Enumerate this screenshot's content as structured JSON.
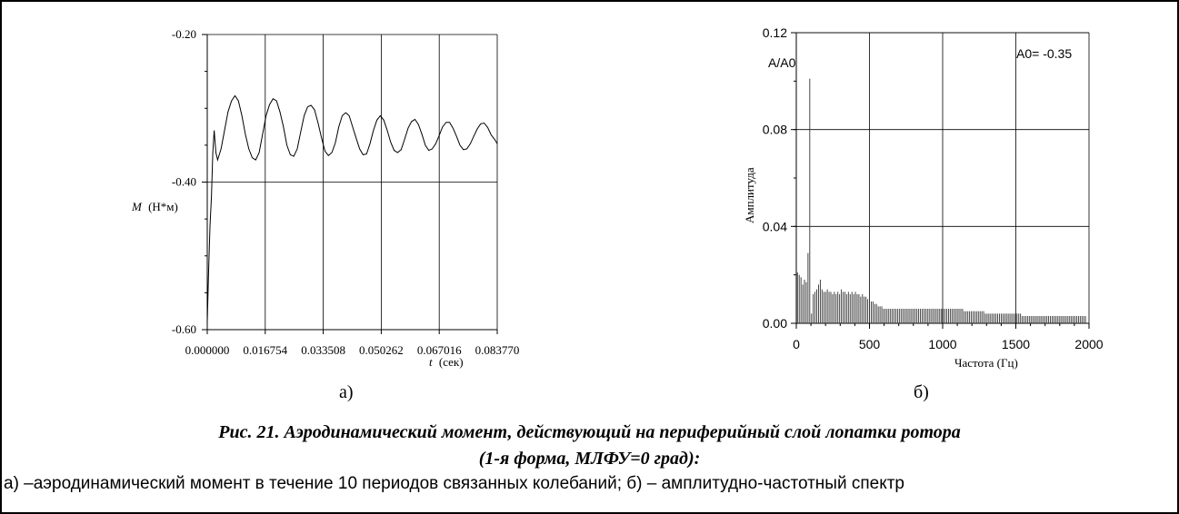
{
  "chart_data": [
    {
      "type": "line",
      "panel_label": "а)",
      "y_label_symbol": "M",
      "y_label_unit": "(Н*м)",
      "x_label_symbol": "t",
      "x_label_unit": "(сек)",
      "xlim": [
        0.0,
        0.08377
      ],
      "ylim": [
        -0.6,
        -0.2
      ],
      "x_ticks": [
        "0.000000",
        "0.016754",
        "0.033508",
        "0.050262",
        "0.067016",
        "0.083770"
      ],
      "y_ticks": [
        "-0.20",
        "-0.40",
        "-0.60"
      ],
      "y_tick_values": [
        -0.2,
        -0.4,
        -0.6
      ],
      "grid": true,
      "series": [
        {
          "x": [
            0.0,
            0.0004,
            0.0008,
            0.0012,
            0.0016,
            0.002,
            0.0025,
            0.003,
            0.004,
            0.005,
            0.006,
            0.007,
            0.008,
            0.009,
            0.01,
            0.011,
            0.012,
            0.013,
            0.014,
            0.015,
            0.016,
            0.017,
            0.018,
            0.019,
            0.02,
            0.021,
            0.022,
            0.023,
            0.024,
            0.025,
            0.026,
            0.027,
            0.028,
            0.029,
            0.03,
            0.031,
            0.032,
            0.033,
            0.034,
            0.035,
            0.036,
            0.037,
            0.038,
            0.039,
            0.04,
            0.041,
            0.042,
            0.043,
            0.044,
            0.045,
            0.046,
            0.047,
            0.048,
            0.049,
            0.05,
            0.051,
            0.052,
            0.053,
            0.054,
            0.055,
            0.056,
            0.057,
            0.058,
            0.059,
            0.06,
            0.061,
            0.062,
            0.063,
            0.064,
            0.065,
            0.066,
            0.067,
            0.068,
            0.069,
            0.07,
            0.071,
            0.072,
            0.073,
            0.074,
            0.075,
            0.076,
            0.077,
            0.078,
            0.079,
            0.08,
            0.081,
            0.082,
            0.083,
            0.08377
          ],
          "y": [
            -0.59,
            -0.52,
            -0.46,
            -0.42,
            -0.36,
            -0.33,
            -0.36,
            -0.37,
            -0.355,
            -0.33,
            -0.305,
            -0.29,
            -0.283,
            -0.29,
            -0.31,
            -0.335,
            -0.355,
            -0.367,
            -0.37,
            -0.36,
            -0.335,
            -0.31,
            -0.295,
            -0.287,
            -0.29,
            -0.305,
            -0.325,
            -0.35,
            -0.363,
            -0.365,
            -0.355,
            -0.332,
            -0.31,
            -0.298,
            -0.296,
            -0.302,
            -0.32,
            -0.34,
            -0.358,
            -0.364,
            -0.36,
            -0.347,
            -0.325,
            -0.31,
            -0.306,
            -0.31,
            -0.325,
            -0.34,
            -0.355,
            -0.363,
            -0.362,
            -0.348,
            -0.33,
            -0.316,
            -0.31,
            -0.316,
            -0.33,
            -0.346,
            -0.357,
            -0.36,
            -0.356,
            -0.342,
            -0.327,
            -0.318,
            -0.315,
            -0.322,
            -0.335,
            -0.35,
            -0.357,
            -0.355,
            -0.348,
            -0.337,
            -0.325,
            -0.319,
            -0.319,
            -0.327,
            -0.338,
            -0.35,
            -0.356,
            -0.355,
            -0.348,
            -0.338,
            -0.328,
            -0.321,
            -0.32,
            -0.326,
            -0.336,
            -0.342,
            -0.348
          ]
        }
      ]
    },
    {
      "type": "bar",
      "panel_label": "б)",
      "ylabel": "Амплитуда",
      "y_annotation": "A/A0",
      "annotation": "A0= -0.35",
      "xlabel": "Частота (Гц)",
      "xlim": [
        0,
        2000
      ],
      "ylim": [
        0,
        0.12
      ],
      "x_ticks": [
        "0",
        "500",
        "1000",
        "1500",
        "2000"
      ],
      "x_tick_values": [
        0,
        500,
        1000,
        1500,
        2000
      ],
      "y_ticks": [
        "0.00",
        "0.04",
        "0.08",
        "0.12"
      ],
      "y_tick_values": [
        0.0,
        0.04,
        0.08,
        0.12
      ],
      "grid": true,
      "bar_spacing_hz": 12,
      "values": [
        0.021,
        0.02,
        0.019,
        0.016,
        0.018,
        0.017,
        0.029,
        0.101,
        0.004,
        0.012,
        0.013,
        0.014,
        0.016,
        0.018,
        0.014,
        0.013,
        0.013,
        0.014,
        0.013,
        0.013,
        0.012,
        0.013,
        0.012,
        0.013,
        0.012,
        0.014,
        0.013,
        0.013,
        0.012,
        0.013,
        0.012,
        0.013,
        0.012,
        0.013,
        0.012,
        0.012,
        0.011,
        0.012,
        0.011,
        0.011,
        0.01,
        0.01,
        0.009,
        0.009,
        0.008,
        0.008,
        0.007,
        0.007,
        0.007,
        0.006,
        0.006,
        0.006,
        0.006,
        0.006,
        0.006,
        0.006,
        0.006,
        0.006,
        0.006,
        0.006,
        0.006,
        0.006,
        0.006,
        0.006,
        0.006,
        0.006,
        0.006,
        0.006,
        0.006,
        0.006,
        0.006,
        0.006,
        0.006,
        0.006,
        0.006,
        0.006,
        0.006,
        0.006,
        0.006,
        0.006,
        0.006,
        0.006,
        0.006,
        0.006,
        0.006,
        0.006,
        0.006,
        0.006,
        0.006,
        0.006,
        0.006,
        0.006,
        0.006,
        0.006,
        0.006,
        0.005,
        0.005,
        0.005,
        0.005,
        0.005,
        0.005,
        0.005,
        0.005,
        0.005,
        0.005,
        0.005,
        0.005,
        0.004,
        0.004,
        0.004,
        0.004,
        0.004,
        0.004,
        0.004,
        0.004,
        0.004,
        0.004,
        0.004,
        0.004,
        0.004,
        0.004,
        0.004,
        0.004,
        0.004,
        0.004,
        0.004,
        0.004,
        0.004,
        0.003,
        0.003,
        0.003,
        0.003,
        0.003,
        0.003,
        0.003,
        0.003,
        0.003,
        0.003,
        0.003,
        0.003,
        0.003,
        0.003,
        0.003,
        0.003,
        0.003,
        0.003,
        0.003,
        0.003,
        0.003,
        0.003,
        0.003,
        0.003,
        0.003,
        0.003,
        0.003,
        0.003,
        0.003,
        0.003,
        0.003,
        0.003,
        0.003,
        0.003,
        0.003,
        0.003,
        0.003
      ]
    }
  ],
  "caption": {
    "line1": "Рис. 21. Аэродинамический момент, действующий на периферийный слой лопатки ротора",
    "line2": "(1-я форма, МЛФУ=0 град):",
    "line3": "а) –аэродинамический момент в течение 10 периодов связанных колебаний; б) – амплитудно-частотный спектр"
  }
}
